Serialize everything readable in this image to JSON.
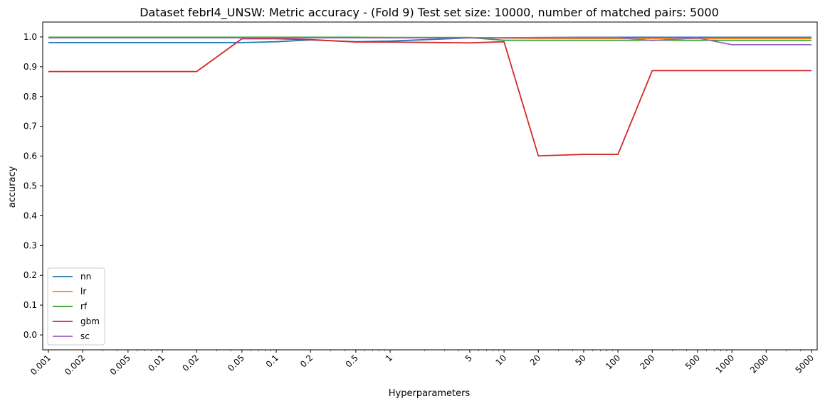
{
  "chart_data": {
    "type": "line",
    "title": "Dataset febrl4_UNSW: Metric accuracy - (Fold 9) Test set size: 10000, number of matched pairs: 5000",
    "xlabel": "Hyperparameters",
    "ylabel": "accuracy",
    "x_scale": "log",
    "x": [
      0.001,
      0.002,
      0.005,
      0.01,
      0.02,
      0.05,
      0.1,
      0.2,
      0.5,
      1,
      5,
      10,
      20,
      50,
      100,
      200,
      500,
      1000,
      2000,
      5000
    ],
    "x_tick_labels": [
      "0.001",
      "0.002",
      "0.005",
      "0.01",
      "0.02",
      "0.05",
      "0.1",
      "0.2",
      "0.5",
      "1",
      "5",
      "10",
      "20",
      "50",
      "100",
      "200",
      "500",
      "1000",
      "2000",
      "5000"
    ],
    "ylim": [
      -0.05,
      1.05
    ],
    "y_ticks": [
      0.0,
      0.1,
      0.2,
      0.3,
      0.4,
      0.5,
      0.6,
      0.7,
      0.8,
      0.9,
      1.0
    ],
    "y_tick_labels": [
      "0.0",
      "0.1",
      "0.2",
      "0.3",
      "0.4",
      "0.5",
      "0.6",
      "0.7",
      "0.8",
      "0.9",
      "1.0"
    ],
    "grid": false,
    "legend_position": "lower-left",
    "series": [
      {
        "name": "nn",
        "color": "#1f77b4",
        "values": [
          0.981,
          0.981,
          0.981,
          0.981,
          0.981,
          0.981,
          0.984,
          0.99,
          0.984,
          0.986,
          0.997,
          0.997,
          0.998,
          0.999,
          0.999,
          0.999,
          0.999,
          0.999,
          0.999,
          0.999
        ]
      },
      {
        "name": "lr",
        "color": "#ff7f0e",
        "values": [
          0.998,
          0.998,
          0.998,
          0.998,
          0.998,
          0.998,
          0.998,
          0.998,
          0.998,
          0.998,
          0.998,
          0.996,
          0.995,
          0.995,
          0.995,
          0.995,
          0.995,
          0.995,
          0.995,
          0.995
        ]
      },
      {
        "name": "rf",
        "color": "#2ca02c",
        "values": [
          0.999,
          0.999,
          0.999,
          0.999,
          0.999,
          0.999,
          0.999,
          0.999,
          0.999,
          0.998,
          0.998,
          0.989,
          0.989,
          0.989,
          0.989,
          0.989,
          0.989,
          0.989,
          0.989,
          0.989
        ]
      },
      {
        "name": "gbm",
        "color": "#d62728",
        "values": [
          0.884,
          0.884,
          0.884,
          0.884,
          0.884,
          0.994,
          0.994,
          0.991,
          0.983,
          0.983,
          0.98,
          0.984,
          0.601,
          0.606,
          0.606,
          0.887,
          0.887,
          0.887,
          0.887,
          0.887
        ]
      },
      {
        "name": "sc",
        "color": "#9467bd",
        "values": [
          0.997,
          0.997,
          0.997,
          0.997,
          0.997,
          0.997,
          0.997,
          0.997,
          0.997,
          0.997,
          0.997,
          0.997,
          0.998,
          0.998,
          0.998,
          0.988,
          0.997,
          0.974,
          0.974,
          0.974
        ]
      }
    ]
  }
}
